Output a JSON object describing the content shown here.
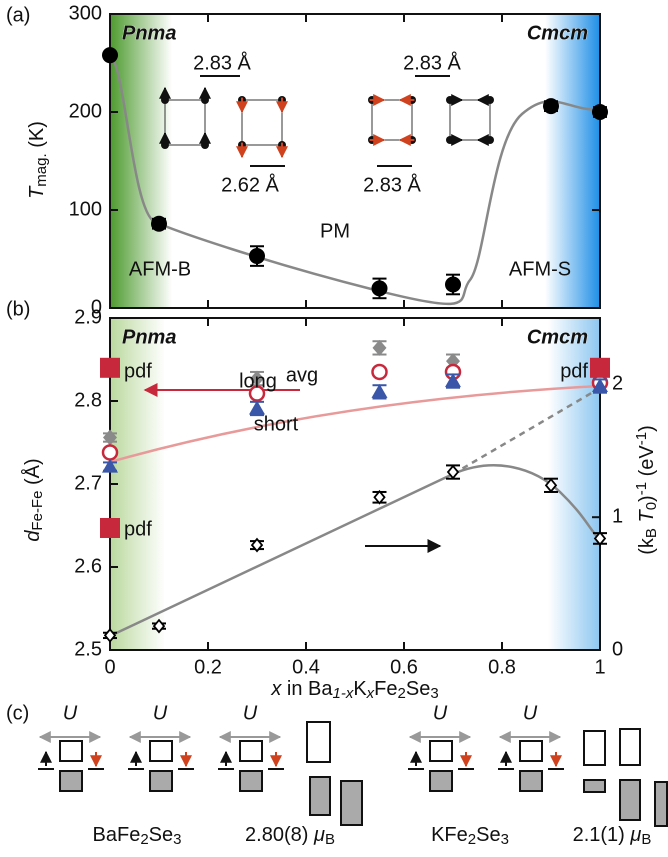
{
  "chart_data": [
    {
      "type": "scatter",
      "panel_label": "(a)",
      "ylabel": [
        "T",
        "mag.",
        " (K)"
      ],
      "xlim": [
        0,
        1
      ],
      "ylim": [
        0,
        300
      ],
      "yticks": [
        0,
        100,
        200,
        300
      ],
      "phase_labels": [
        "Pnma",
        "Cmcm"
      ],
      "annotations": [
        "AFM-B",
        "PM",
        "AFM-S"
      ],
      "distance_labels": [
        "2.83 Å",
        "2.62 Å",
        "2.83 Å",
        "2.83 Å"
      ],
      "series": [
        {
          "color": "#000000",
          "marker": "filled-circle",
          "x": [
            0,
            0.1,
            0.3,
            0.55,
            0.7,
            0.9,
            1
          ],
          "values": [
            258,
            86,
            53,
            20,
            24,
            206,
            200
          ],
          "errors": [
            0,
            5,
            10,
            10,
            10,
            5,
            5
          ]
        }
      ]
    },
    {
      "type": "scatter",
      "panel_label": "(b)",
      "ylabel": [
        "d",
        "Fe-Fe",
        " (Å)"
      ],
      "y2label": [
        "(k",
        "B",
        " T",
        "0",
        ")",
        "-1",
        " (eV",
        "-1",
        ")"
      ],
      "xlabel": [
        "x",
        " in Ba",
        "1-x",
        "K",
        "x",
        "Fe",
        "2",
        "Se",
        "3"
      ],
      "xlim": [
        0,
        1
      ],
      "xticks": [
        0,
        0.2,
        0.4,
        0.6,
        0.8,
        1
      ],
      "ylim": [
        2.5,
        2.9
      ],
      "yticks": [
        2.5,
        2.6,
        2.7,
        2.8,
        2.9
      ],
      "y2lim": [
        0,
        2.5
      ],
      "y2ticks": [
        0,
        1,
        2
      ],
      "phase_labels": [
        "Pnma",
        "Cmcm"
      ],
      "series": [
        {
          "name": "long",
          "color": "#8a8a8a",
          "marker": "filled-diamond",
          "x": [
            0,
            0.3,
            0.55,
            0.7,
            1
          ],
          "values": [
            2.756,
            2.827,
            2.864,
            2.848,
            2.84
          ],
          "errors": [
            0.005,
            0.008,
            0.008,
            0.008,
            0.008
          ]
        },
        {
          "name": "avg",
          "color": "#c8283c",
          "marker": "open-circle",
          "x": [
            0,
            0.3,
            0.55,
            0.7,
            1
          ],
          "values": [
            2.738,
            2.809,
            2.835,
            2.835,
            2.822
          ]
        },
        {
          "name": "short",
          "color": "#3a56a8",
          "marker": "triangle",
          "x": [
            0,
            0.3,
            0.55,
            0.7,
            1
          ],
          "values": [
            2.721,
            2.791,
            2.811,
            2.824,
            2.818
          ],
          "errors": [
            0.005,
            0.008,
            0.008,
            0.008,
            0.008
          ]
        },
        {
          "name": "pdf",
          "color": "#c8283c",
          "marker": "square",
          "x": [
            0,
            0,
            1
          ],
          "values": [
            2.84,
            2.647,
            2.84
          ]
        },
        {
          "color": "#000000",
          "marker": "open-diamond",
          "axis": "y2",
          "x": [
            0,
            0.1,
            0.3,
            0.55,
            0.7,
            0.9,
            1
          ],
          "values": [
            0.11,
            0.18,
            0.79,
            1.15,
            1.34,
            1.24,
            0.84
          ],
          "errors": [
            0.02,
            0.02,
            0.03,
            0.04,
            0.05,
            0.05,
            0.04
          ]
        }
      ]
    }
  ],
  "panel_c": {
    "label": "(c)",
    "interaction": "U",
    "compounds": [
      {
        "formula": [
          "BaFe",
          "2",
          "Se",
          "3"
        ],
        "moment": [
          "2.80(8) ",
          "μ",
          "B"
        ]
      },
      {
        "formula": [
          "KFe",
          "2",
          "Se",
          "3"
        ],
        "moment": [
          "2.1(1) ",
          "μ",
          "B"
        ]
      }
    ]
  }
}
